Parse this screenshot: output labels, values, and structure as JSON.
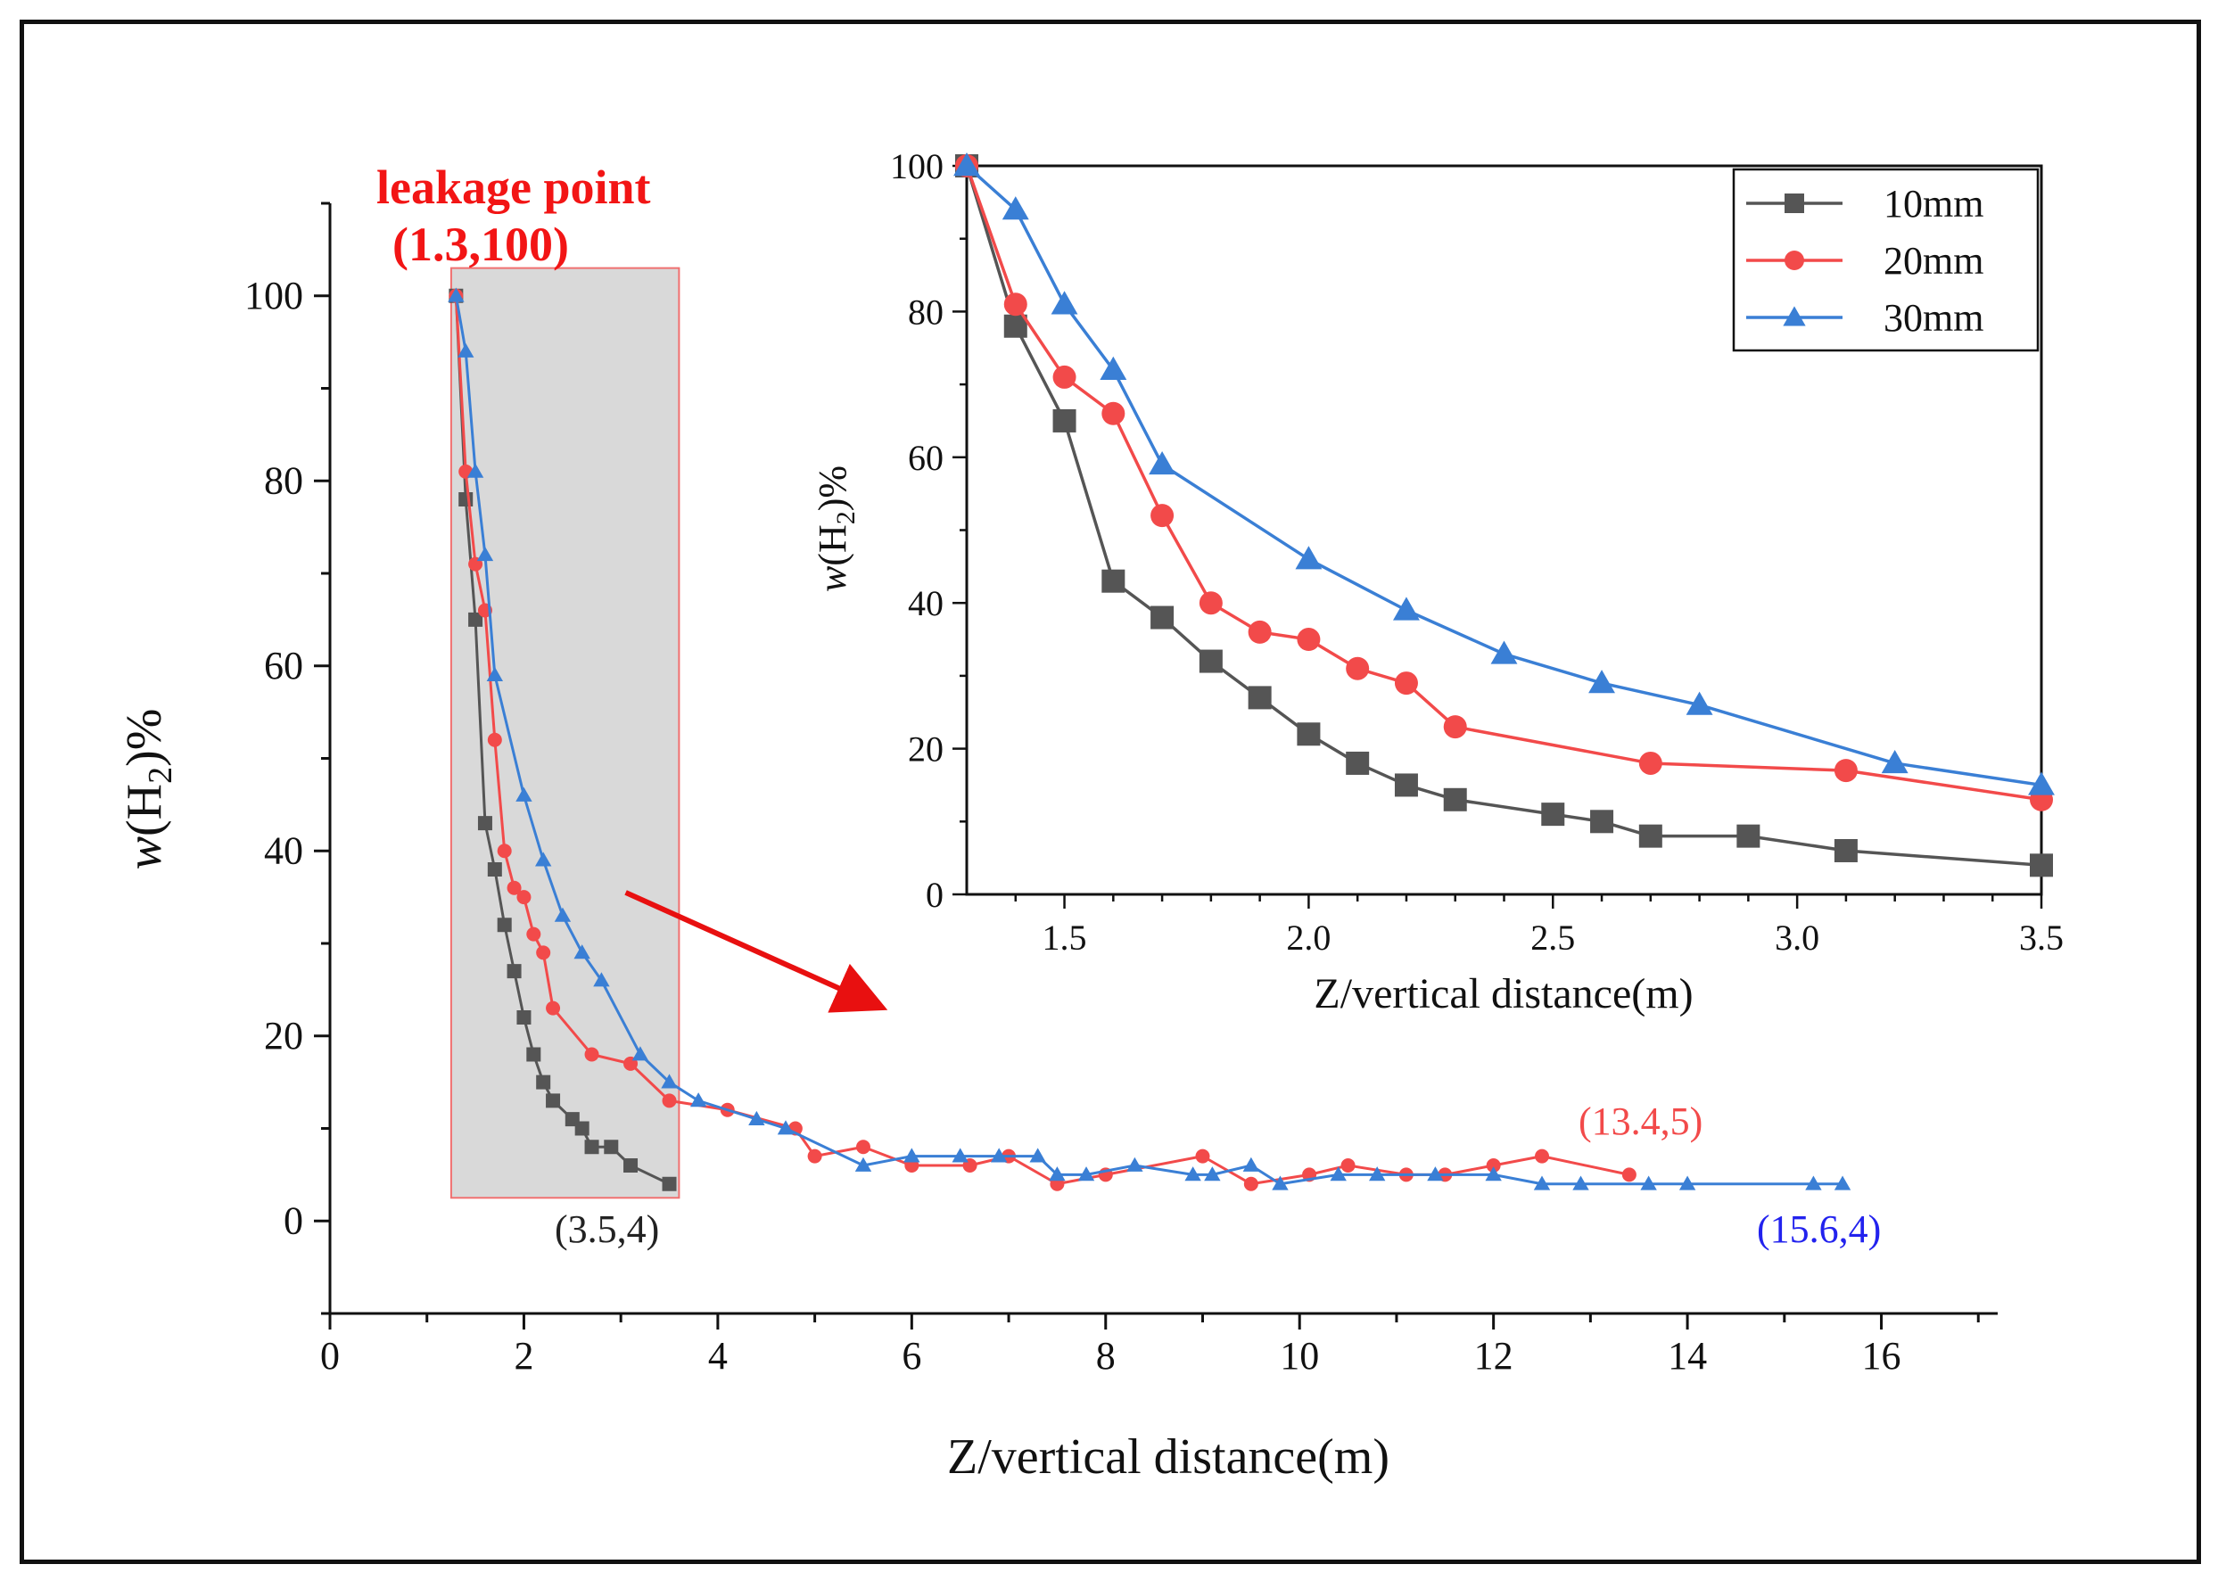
{
  "chart_data": [
    {
      "name": "main",
      "type": "line",
      "xlabel": "Z/vertical distance(m)",
      "ylabel_prefix": "w",
      "ylabel_main": "(H",
      "ylabel_sub": "2",
      "ylabel_suffix": ")%",
      "xlim": [
        0,
        17.2
      ],
      "ylim": [
        -10,
        110
      ],
      "xticks": [
        0,
        2,
        4,
        6,
        8,
        10,
        12,
        14,
        16
      ],
      "yticks": [
        0,
        20,
        40,
        60,
        80,
        100
      ],
      "series": [
        {
          "name": "10mm",
          "color": "#555555",
          "marker": "square",
          "x": [
            1.3,
            1.4,
            1.5,
            1.6,
            1.7,
            1.8,
            1.9,
            2.0,
            2.1,
            2.2,
            2.3,
            2.5,
            2.6,
            2.7,
            2.9,
            3.1,
            3.5
          ],
          "y": [
            100,
            78,
            65,
            43,
            38,
            32,
            27,
            22,
            18,
            15,
            13,
            11,
            10,
            8,
            8,
            6,
            4
          ]
        },
        {
          "name": "20mm",
          "color": "#f24a4a",
          "marker": "circle",
          "x": [
            1.3,
            1.4,
            1.5,
            1.6,
            1.7,
            1.8,
            1.9,
            2.0,
            2.1,
            2.2,
            2.3,
            2.7,
            3.1,
            3.5,
            4.1,
            4.8,
            5.0,
            5.5,
            6.0,
            6.6,
            7.0,
            7.5,
            8.0,
            9.0,
            9.5,
            10.1,
            10.5,
            11.1,
            11.5,
            12.0,
            12.5,
            13.4
          ],
          "y": [
            100,
            81,
            71,
            66,
            52,
            40,
            36,
            35,
            31,
            29,
            23,
            18,
            17,
            13,
            12,
            10,
            7,
            8,
            6,
            6,
            7,
            4,
            5,
            7,
            4,
            5,
            6,
            5,
            5,
            6,
            7,
            5
          ]
        },
        {
          "name": "30mm",
          "color": "#3a7fd5",
          "marker": "triangle",
          "x": [
            1.3,
            1.4,
            1.5,
            1.6,
            1.7,
            2.0,
            2.2,
            2.4,
            2.6,
            2.8,
            3.2,
            3.5,
            3.8,
            4.4,
            4.7,
            5.5,
            6.0,
            6.5,
            6.9,
            7.3,
            7.5,
            7.8,
            8.3,
            8.9,
            9.1,
            9.5,
            9.8,
            10.4,
            10.8,
            11.4,
            12.0,
            12.5,
            12.9,
            13.6,
            14.0,
            15.3,
            15.6
          ],
          "y": [
            100,
            94,
            81,
            72,
            59,
            46,
            39,
            33,
            29,
            26,
            18,
            15,
            13,
            11,
            10,
            6,
            7,
            7,
            7,
            7,
            5,
            5,
            6,
            5,
            5,
            6,
            4,
            5,
            5,
            5,
            5,
            4,
            4,
            4,
            4,
            4,
            4
          ]
        }
      ],
      "annotations": {
        "leakage_title": "leakage point",
        "leakage_coord": "(1.3,100)",
        "end_10mm": "(3.5,4)",
        "end_20mm": "(13.4,5)",
        "end_30mm": "(15.6,4)"
      },
      "highlight_region": {
        "x": [
          1.25,
          3.6
        ],
        "y": [
          2.5,
          103
        ]
      },
      "arrow": {
        "from": [
          3.05,
          35.5
        ],
        "to": [
          5.6,
          23.5
        ]
      }
    },
    {
      "name": "inset",
      "type": "line",
      "xlabel": "Z/vertical distance(m)",
      "ylabel_prefix": "w",
      "ylabel_main": "(H",
      "ylabel_sub": "2",
      "ylabel_suffix": ")%",
      "xlim": [
        1.3,
        3.5
      ],
      "ylim": [
        0,
        100
      ],
      "xticks": [
        1.5,
        2.0,
        2.5,
        3.0,
        3.5
      ],
      "xtick_labels": [
        "1.5",
        "2.0",
        "2.5",
        "3.0",
        "3.5"
      ],
      "yticks": [
        0,
        20,
        40,
        60,
        80,
        100
      ],
      "legend": {
        "position": "top-right",
        "entries": [
          "10mm",
          "20mm",
          "30mm"
        ]
      },
      "series": [
        {
          "name": "10mm",
          "color": "#555555",
          "marker": "square",
          "x": [
            1.3,
            1.4,
            1.5,
            1.6,
            1.7,
            1.8,
            1.9,
            2.0,
            2.1,
            2.2,
            2.3,
            2.5,
            2.6,
            2.7,
            2.9,
            3.1,
            3.5
          ],
          "y": [
            100,
            78,
            65,
            43,
            38,
            32,
            27,
            22,
            18,
            15,
            13,
            11,
            10,
            8,
            8,
            6,
            4
          ]
        },
        {
          "name": "20mm",
          "color": "#f24a4a",
          "marker": "circle",
          "x": [
            1.3,
            1.4,
            1.5,
            1.6,
            1.7,
            1.8,
            1.9,
            2.0,
            2.1,
            2.2,
            2.3,
            2.7,
            3.1,
            3.5
          ],
          "y": [
            100,
            81,
            71,
            66,
            52,
            40,
            36,
            35,
            31,
            29,
            23,
            18,
            17,
            13
          ]
        },
        {
          "name": "30mm",
          "color": "#3a7fd5",
          "marker": "triangle",
          "x": [
            1.3,
            1.4,
            1.5,
            1.6,
            1.7,
            2.0,
            2.2,
            2.4,
            2.6,
            2.8,
            3.2,
            3.5
          ],
          "y": [
            100,
            94,
            81,
            72,
            59,
            46,
            39,
            33,
            29,
            26,
            18,
            15
          ]
        }
      ]
    }
  ]
}
